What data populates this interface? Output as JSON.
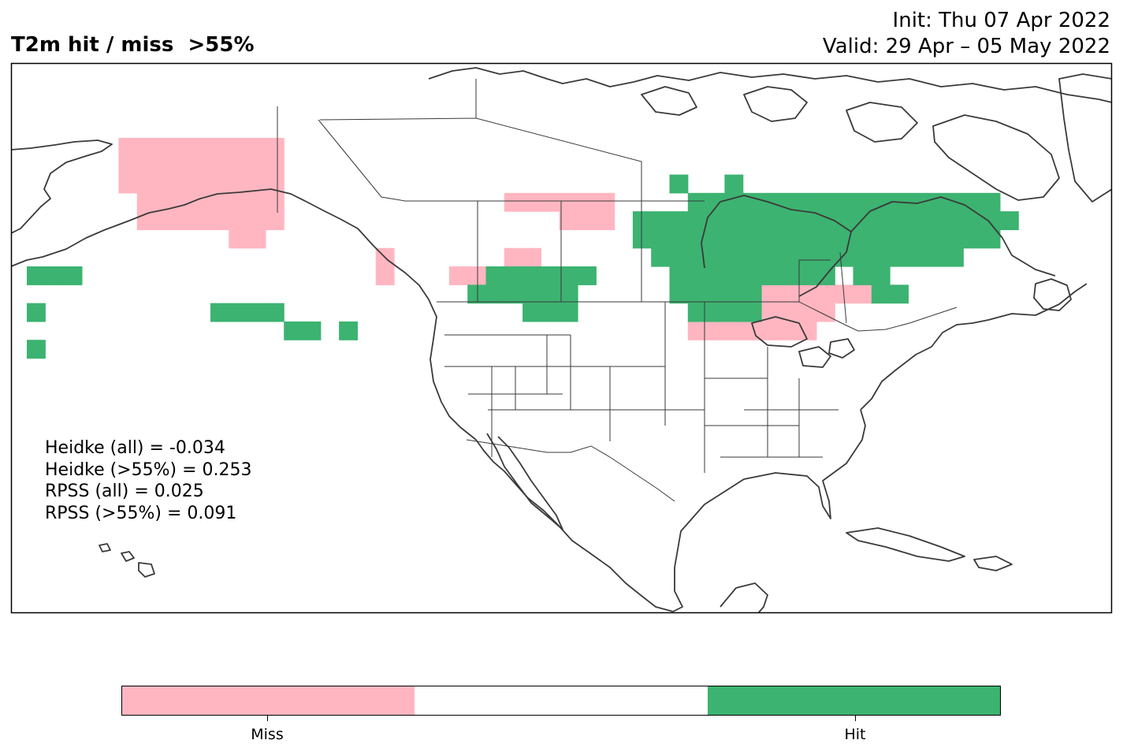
{
  "title": "T2m hit / miss  >55%",
  "init_line": "Init: Thu 07 Apr 2022",
  "valid_line": "Valid: 29 Apr – 05 May 2022",
  "scores": [
    "Heidke (all) = -0.034",
    "Heidke (>55%) = 0.253",
    "RPSS (all) = 0.025",
    "RPSS (>55%) = 0.091"
  ],
  "legend": {
    "colors": {
      "miss": "#ffb6c1",
      "neutral": "#ffffff",
      "hit": "#3cb371"
    },
    "miss_label": "Miss",
    "hit_label": "Hit"
  },
  "colors": {
    "coastline": "#3a3a3a",
    "border": "#3a3a3a"
  },
  "map_cells": {
    "hit": [
      [
        0,
        10
      ],
      [
        1,
        10
      ],
      [
        2,
        10
      ],
      [
        0,
        12
      ],
      [
        0,
        14
      ],
      [
        10,
        12
      ],
      [
        11,
        12
      ],
      [
        12,
        12
      ],
      [
        13,
        12
      ],
      [
        14,
        13
      ],
      [
        15,
        13
      ],
      [
        17,
        13
      ],
      [
        35,
        5
      ],
      [
        38,
        5
      ],
      [
        36,
        6
      ],
      [
        37,
        6
      ],
      [
        38,
        6
      ],
      [
        39,
        6
      ],
      [
        40,
        6
      ],
      [
        41,
        6
      ],
      [
        42,
        6
      ],
      [
        43,
        6
      ],
      [
        44,
        6
      ],
      [
        45,
        6
      ],
      [
        46,
        6
      ],
      [
        47,
        6
      ],
      [
        48,
        6
      ],
      [
        49,
        6
      ],
      [
        50,
        6
      ],
      [
        51,
        6
      ],
      [
        52,
        6
      ],
      [
        33,
        7
      ],
      [
        34,
        7
      ],
      [
        35,
        7
      ],
      [
        36,
        7
      ],
      [
        37,
        7
      ],
      [
        38,
        7
      ],
      [
        39,
        7
      ],
      [
        40,
        7
      ],
      [
        41,
        7
      ],
      [
        42,
        7
      ],
      [
        43,
        7
      ],
      [
        44,
        7
      ],
      [
        45,
        7
      ],
      [
        46,
        7
      ],
      [
        47,
        7
      ],
      [
        48,
        7
      ],
      [
        49,
        7
      ],
      [
        50,
        7
      ],
      [
        51,
        7
      ],
      [
        52,
        7
      ],
      [
        53,
        7
      ],
      [
        33,
        8
      ],
      [
        34,
        8
      ],
      [
        35,
        8
      ],
      [
        36,
        8
      ],
      [
        37,
        8
      ],
      [
        38,
        8
      ],
      [
        39,
        8
      ],
      [
        40,
        8
      ],
      [
        41,
        8
      ],
      [
        42,
        8
      ],
      [
        43,
        8
      ],
      [
        44,
        8
      ],
      [
        45,
        8
      ],
      [
        46,
        8
      ],
      [
        47,
        8
      ],
      [
        48,
        8
      ],
      [
        49,
        8
      ],
      [
        50,
        8
      ],
      [
        51,
        8
      ],
      [
        52,
        8
      ],
      [
        34,
        9
      ],
      [
        35,
        9
      ],
      [
        36,
        9
      ],
      [
        37,
        9
      ],
      [
        38,
        9
      ],
      [
        39,
        9
      ],
      [
        40,
        9
      ],
      [
        41,
        9
      ],
      [
        42,
        9
      ],
      [
        43,
        9
      ],
      [
        44,
        9
      ],
      [
        45,
        9
      ],
      [
        46,
        9
      ],
      [
        47,
        9
      ],
      [
        48,
        9
      ],
      [
        49,
        9
      ],
      [
        50,
        9
      ],
      [
        35,
        10
      ],
      [
        36,
        10
      ],
      [
        37,
        10
      ],
      [
        38,
        10
      ],
      [
        39,
        10
      ],
      [
        40,
        10
      ],
      [
        41,
        10
      ],
      [
        42,
        10
      ],
      [
        43,
        10
      ],
      [
        45,
        10
      ],
      [
        46,
        10
      ],
      [
        35,
        11
      ],
      [
        36,
        11
      ],
      [
        37,
        11
      ],
      [
        38,
        11
      ],
      [
        39,
        11
      ],
      [
        46,
        11
      ],
      [
        47,
        11
      ],
      [
        36,
        12
      ],
      [
        37,
        12
      ],
      [
        38,
        12
      ],
      [
        39,
        12
      ],
      [
        25,
        10
      ],
      [
        26,
        10
      ],
      [
        27,
        10
      ],
      [
        28,
        10
      ],
      [
        29,
        10
      ],
      [
        30,
        10
      ],
      [
        24,
        11
      ],
      [
        25,
        11
      ],
      [
        26,
        11
      ],
      [
        27,
        11
      ],
      [
        28,
        11
      ],
      [
        29,
        11
      ],
      [
        27,
        12
      ],
      [
        28,
        12
      ],
      [
        29,
        12
      ]
    ],
    "miss": [
      [
        5,
        3
      ],
      [
        6,
        3
      ],
      [
        7,
        3
      ],
      [
        8,
        3
      ],
      [
        9,
        3
      ],
      [
        10,
        3
      ],
      [
        11,
        3
      ],
      [
        12,
        3
      ],
      [
        13,
        3
      ],
      [
        5,
        4
      ],
      [
        6,
        4
      ],
      [
        7,
        4
      ],
      [
        8,
        4
      ],
      [
        9,
        4
      ],
      [
        10,
        4
      ],
      [
        11,
        4
      ],
      [
        12,
        4
      ],
      [
        13,
        4
      ],
      [
        5,
        5
      ],
      [
        6,
        5
      ],
      [
        7,
        5
      ],
      [
        8,
        5
      ],
      [
        9,
        5
      ],
      [
        10,
        5
      ],
      [
        11,
        5
      ],
      [
        12,
        5
      ],
      [
        13,
        5
      ],
      [
        6,
        6
      ],
      [
        7,
        6
      ],
      [
        8,
        6
      ],
      [
        9,
        6
      ],
      [
        10,
        6
      ],
      [
        11,
        6
      ],
      [
        12,
        6
      ],
      [
        13,
        6
      ],
      [
        6,
        7
      ],
      [
        7,
        7
      ],
      [
        8,
        7
      ],
      [
        9,
        7
      ],
      [
        10,
        7
      ],
      [
        11,
        7
      ],
      [
        12,
        7
      ],
      [
        13,
        7
      ],
      [
        11,
        8
      ],
      [
        12,
        8
      ],
      [
        19,
        9
      ],
      [
        19,
        10
      ],
      [
        26,
        6
      ],
      [
        27,
        6
      ],
      [
        28,
        6
      ],
      [
        29,
        6
      ],
      [
        30,
        6
      ],
      [
        31,
        6
      ],
      [
        29,
        7
      ],
      [
        30,
        7
      ],
      [
        31,
        7
      ],
      [
        23,
        10
      ],
      [
        24,
        10
      ],
      [
        26,
        9
      ],
      [
        27,
        9
      ],
      [
        41,
        10
      ],
      [
        42,
        10
      ],
      [
        43,
        10
      ],
      [
        39,
        11
      ],
      [
        40,
        11
      ],
      [
        41,
        11
      ],
      [
        42,
        11
      ],
      [
        43,
        11
      ],
      [
        44,
        11
      ],
      [
        45,
        11
      ],
      [
        37,
        12
      ],
      [
        38,
        12
      ],
      [
        39,
        12
      ],
      [
        40,
        12
      ],
      [
        41,
        12
      ],
      [
        42,
        12
      ],
      [
        43,
        12
      ],
      [
        36,
        13
      ],
      [
        37,
        13
      ],
      [
        38,
        13
      ],
      [
        39,
        13
      ],
      [
        40,
        13
      ],
      [
        41,
        13
      ],
      [
        42,
        13
      ]
    ]
  }
}
